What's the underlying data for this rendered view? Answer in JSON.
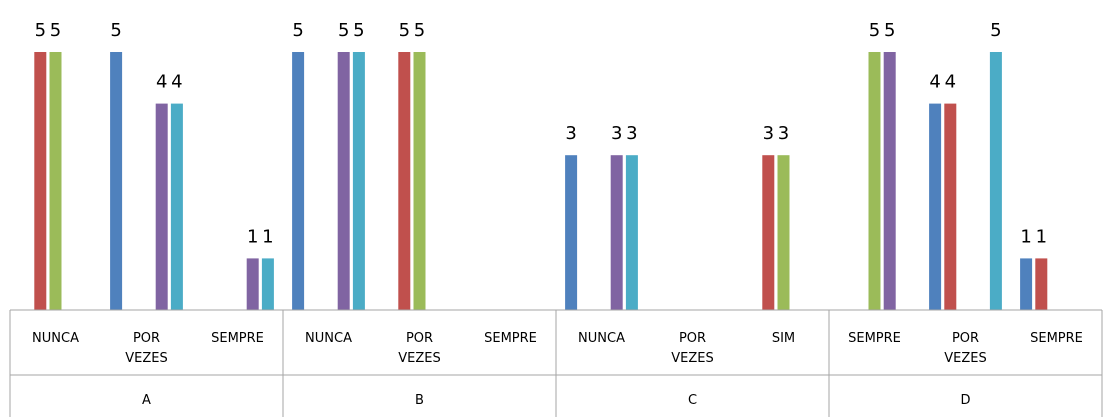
{
  "chart_data": {
    "type": "bar",
    "categories": [
      "NUNCA",
      "POR VEZES",
      "SEMPRE",
      "NUNCA",
      "POR VEZES",
      "SEMPRE",
      "NUNCA",
      "POR VEZES",
      "SIM",
      "SEMPRE",
      "POR VEZES",
      "SEMPRE"
    ],
    "category_groups": [
      "A",
      "B",
      "C",
      "D"
    ],
    "ylim": [
      0,
      5
    ],
    "series": [
      {
        "color": "#4f81bd",
        "values": [
          null,
          5,
          null,
          5,
          null,
          null,
          3,
          null,
          null,
          null,
          4,
          1
        ]
      },
      {
        "color": "#c0504d",
        "values": [
          5,
          null,
          null,
          null,
          5,
          null,
          null,
          null,
          3,
          null,
          4,
          1
        ]
      },
      {
        "color": "#9bbb59",
        "values": [
          5,
          null,
          null,
          null,
          5,
          null,
          null,
          null,
          3,
          5,
          null,
          null
        ]
      },
      {
        "color": "#8064a2",
        "values": [
          null,
          4,
          1,
          5,
          null,
          null,
          3,
          null,
          null,
          5,
          null,
          null
        ]
      },
      {
        "color": "#4bacc6",
        "values": [
          null,
          4,
          1,
          5,
          null,
          null,
          3,
          null,
          null,
          null,
          5,
          null
        ]
      }
    ]
  }
}
